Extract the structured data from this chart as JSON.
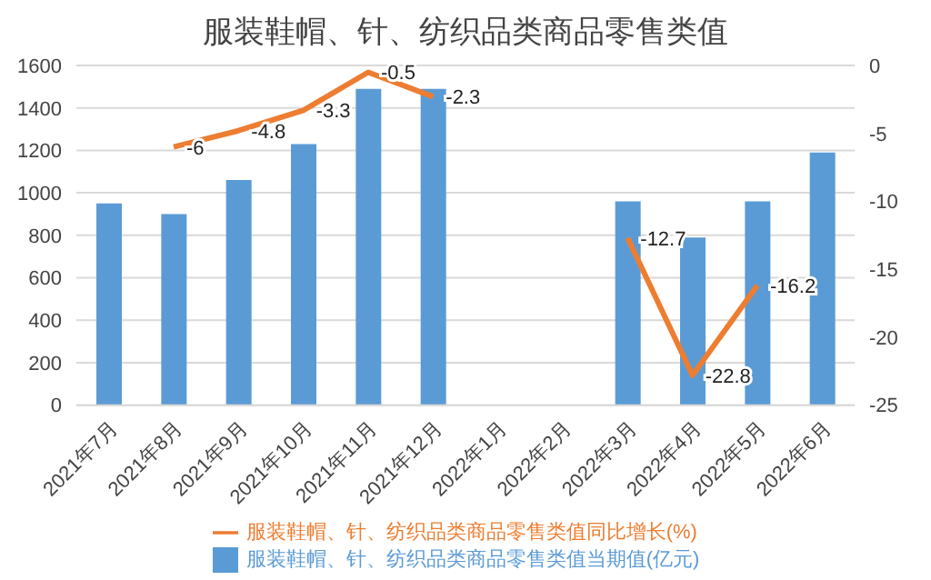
{
  "chart_data": {
    "type": "bar",
    "title": "服装鞋帽、针、纺织品类商品零售类值",
    "categories": [
      "2021年7月",
      "2021年8月",
      "2021年9月",
      "2021年10月",
      "2021年11月",
      "2021年12月",
      "2022年1月",
      "2022年2月",
      "2022年3月",
      "2022年4月",
      "2022年5月",
      "2022年6月"
    ],
    "series": [
      {
        "name": "服装鞋帽、针、纺织品类商品零售类值当期值(亿元)",
        "color": "#5b9bd5",
        "values": [
          950,
          900,
          1060,
          1230,
          1490,
          1490,
          null,
          null,
          960,
          790,
          960,
          1190
        ]
      },
      {
        "name": "服装鞋帽、针、纺织品类商品零售类值同比增长(%)",
        "type": "line",
        "axis": "y2",
        "color": "#ed7d31",
        "values": [
          null,
          -6,
          -4.8,
          -3.3,
          -0.5,
          -2.3,
          null,
          null,
          -12.7,
          -22.8,
          -16.2,
          null
        ],
        "value_labels": [
          null,
          "-6",
          "-4.8",
          "-3.3",
          "-0.5",
          "-2.3",
          null,
          null,
          "-12.7",
          "-22.8",
          "-16.2",
          null
        ]
      }
    ],
    "ylim": [
      0,
      1600
    ],
    "yticks": [
      0,
      200,
      400,
      600,
      800,
      1000,
      1200,
      1400,
      1600
    ],
    "y2lim": [
      -25,
      0
    ],
    "y2ticks": [
      -25,
      -20,
      -15,
      -10,
      -5,
      0
    ],
    "grid": "y",
    "legend": "bottom",
    "marker": "none",
    "line_style": "solid"
  }
}
